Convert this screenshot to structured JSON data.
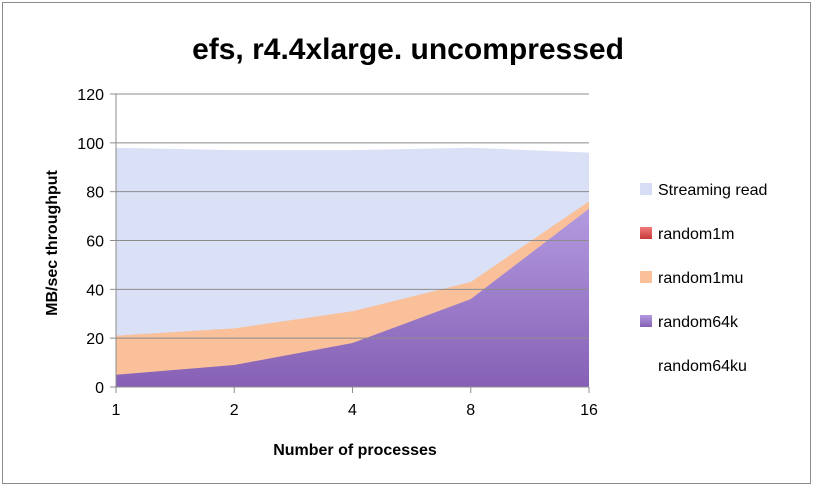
{
  "chart_data": {
    "type": "area",
    "title": "efs, r4.4xlarge. uncompressed",
    "xlabel": "Number of processes",
    "ylabel": "MB/sec throughput",
    "categories": [
      "1",
      "2",
      "4",
      "8",
      "16"
    ],
    "ylim": [
      0,
      120
    ],
    "yticks": [
      0,
      20,
      40,
      60,
      80,
      100,
      120
    ],
    "grid": true,
    "legend_position": "right",
    "series": [
      {
        "name": "Streaming read",
        "values": [
          98,
          97,
          97,
          98,
          96
        ],
        "color": "#d6ddf5"
      },
      {
        "name": "random1m",
        "values": [
          0,
          0,
          0,
          0,
          0
        ],
        "color": "#e05252"
      },
      {
        "name": "random1mu",
        "values": [
          21,
          24,
          31,
          43,
          76
        ],
        "color": "#f9c09a"
      },
      {
        "name": "random64k",
        "values": [
          5,
          9,
          18,
          36,
          73
        ],
        "color": "#9b77c9"
      },
      {
        "name": "random64ku",
        "values": [
          0,
          0,
          0,
          0,
          0
        ],
        "color": "#ffffff"
      }
    ]
  }
}
